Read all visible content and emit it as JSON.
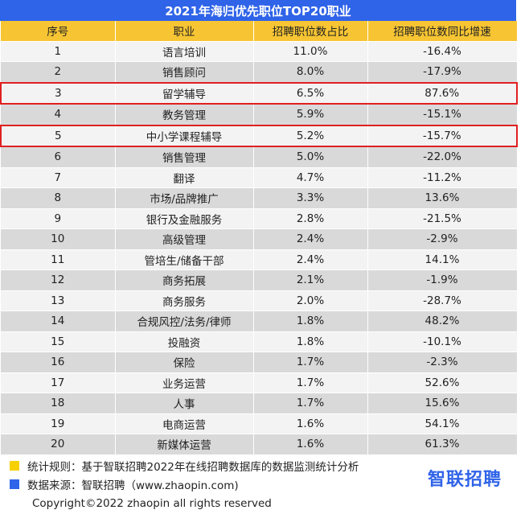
{
  "title": "2021年海归优先职位TOP20职业",
  "headers": [
    "序号",
    "职业",
    "招聘职位数占比",
    "招聘职位数同比增速"
  ],
  "rows": [
    {
      "rank": "1",
      "job": "语言培训",
      "share": "11.0%",
      "growth": "-16.4%"
    },
    {
      "rank": "2",
      "job": "销售顾问",
      "share": "8.0%",
      "growth": "-17.9%"
    },
    {
      "rank": "3",
      "job": "留学辅导",
      "share": "6.5%",
      "growth": "87.6%"
    },
    {
      "rank": "4",
      "job": "教务管理",
      "share": "5.9%",
      "growth": "-15.1%"
    },
    {
      "rank": "5",
      "job": "中小学课程辅导",
      "share": "5.2%",
      "growth": "-15.7%"
    },
    {
      "rank": "6",
      "job": "销售管理",
      "share": "5.0%",
      "growth": "-22.0%"
    },
    {
      "rank": "7",
      "job": "翻译",
      "share": "4.7%",
      "growth": "-11.2%"
    },
    {
      "rank": "8",
      "job": "市场/品牌推广",
      "share": "3.3%",
      "growth": "13.6%"
    },
    {
      "rank": "9",
      "job": "银行及金融服务",
      "share": "2.8%",
      "growth": "-21.5%"
    },
    {
      "rank": "10",
      "job": "高级管理",
      "share": "2.4%",
      "growth": "-2.9%"
    },
    {
      "rank": "11",
      "job": "管培生/储备干部",
      "share": "2.4%",
      "growth": "14.1%"
    },
    {
      "rank": "12",
      "job": "商务拓展",
      "share": "2.1%",
      "growth": "-1.9%"
    },
    {
      "rank": "13",
      "job": "商务服务",
      "share": "2.0%",
      "growth": "-28.7%"
    },
    {
      "rank": "14",
      "job": "合规风控/法务/律师",
      "share": "1.8%",
      "growth": "48.2%"
    },
    {
      "rank": "15",
      "job": "投融资",
      "share": "1.8%",
      "growth": "-10.1%"
    },
    {
      "rank": "16",
      "job": "保险",
      "share": "1.7%",
      "growth": "-2.3%"
    },
    {
      "rank": "17",
      "job": "业务运营",
      "share": "1.7%",
      "growth": "52.6%"
    },
    {
      "rank": "18",
      "job": "人事",
      "share": "1.7%",
      "growth": "15.6%"
    },
    {
      "rank": "19",
      "job": "电商运营",
      "share": "1.6%",
      "growth": "54.1%"
    },
    {
      "rank": "20",
      "job": "新媒体运营",
      "share": "1.6%",
      "growth": "61.3%"
    }
  ],
  "highlighted_ranks": [
    "3",
    "5"
  ],
  "notes": {
    "rule": "统计规则：基于智联招聘2022年在线招聘数据库的数据监测统计分析",
    "source": "数据来源：智联招聘（www.zhaopin.com)"
  },
  "logo_text": "智联招聘",
  "copyright": "Copyright©2022 zhaopin all rights reserved",
  "colors": {
    "title_bg": "#2f63e8",
    "header_bg": "#f7c533",
    "row_light": "#f3f3f3",
    "row_dark": "#d9d9d9",
    "highlight_border": "#e02020",
    "note_yellow": "#f7d000",
    "note_blue": "#2f63e8"
  }
}
